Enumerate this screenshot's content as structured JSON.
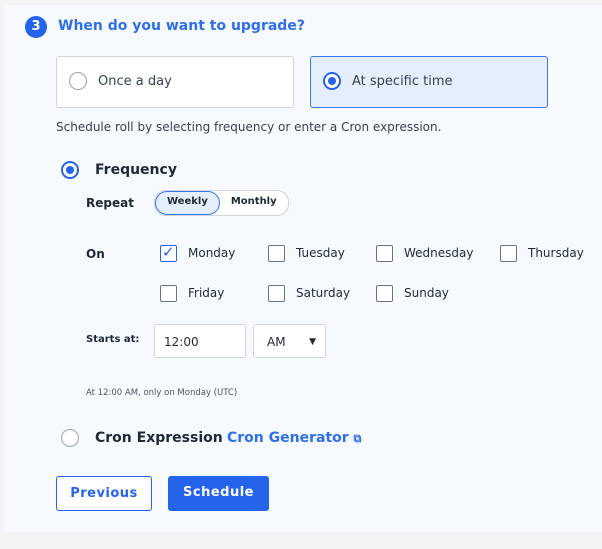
{
  "step_number": "3",
  "title": "When do you want to upgrade?",
  "options": [
    {
      "label": "Once a day",
      "selected": false
    },
    {
      "label": "At specific time",
      "selected": true
    }
  ],
  "hint": "Schedule roll by selecting frequency or enter a Cron expression.",
  "frequency": {
    "label": "Frequency",
    "selected": true,
    "repeat_label": "Repeat",
    "repeat_options": [
      "Weekly",
      "Monthly"
    ],
    "repeat_selected": "Weekly",
    "on_label": "On",
    "days": [
      {
        "label": "Monday",
        "checked": true
      },
      {
        "label": "Tuesday",
        "checked": false
      },
      {
        "label": "Wednesday",
        "checked": false
      },
      {
        "label": "Thursday",
        "checked": false
      },
      {
        "label": "Friday",
        "checked": false
      },
      {
        "label": "Saturday",
        "checked": false
      },
      {
        "label": "Sunday",
        "checked": false
      }
    ],
    "starts_label": "Starts at:",
    "time": "12:00",
    "ampm": "AM",
    "summary": "At 12:00 AM, only on Monday (UTC)"
  },
  "cron": {
    "label": "Cron Expression",
    "selected": false,
    "generator_link": "Cron Generator"
  },
  "buttons": {
    "previous": "Previous",
    "schedule": "Schedule"
  },
  "colors": {
    "accent": "#2563eb",
    "selected_bg": "#e5eefc"
  }
}
